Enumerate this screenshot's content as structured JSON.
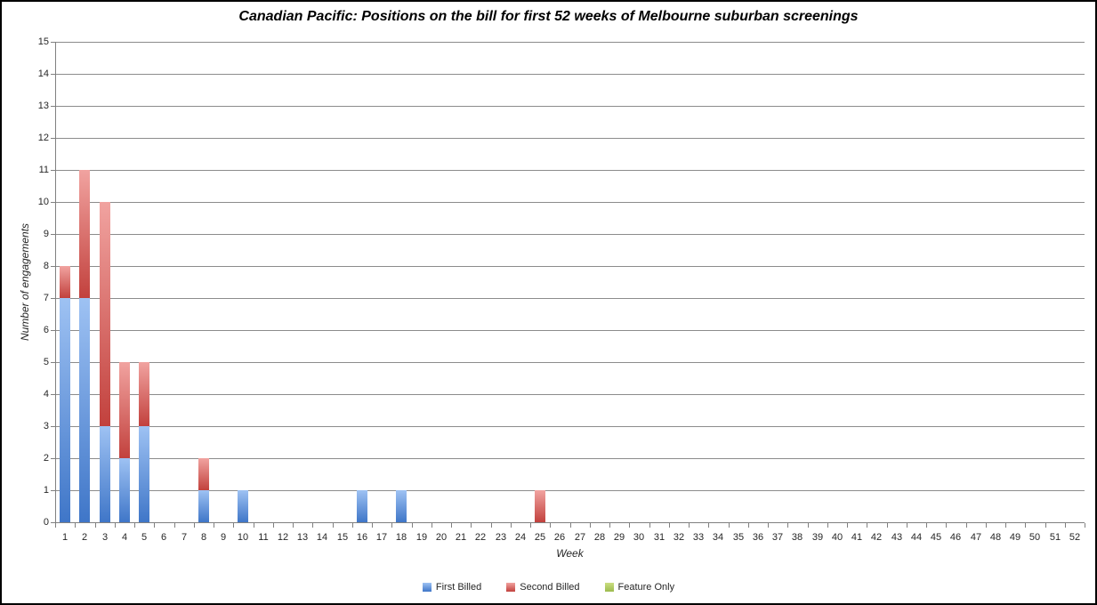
{
  "chart_data": {
    "type": "bar",
    "stacked": true,
    "title": "Canadian Pacific: Positions on the bill for first 52 weeks of Melbourne suburban screenings",
    "xlabel": "Week",
    "ylabel": "Number of engagements",
    "ylim": [
      0,
      15
    ],
    "ytick_step": 1,
    "grid": "horizontal",
    "legend_position": "bottom",
    "categories": [
      1,
      2,
      3,
      4,
      5,
      6,
      7,
      8,
      9,
      10,
      11,
      12,
      13,
      14,
      15,
      16,
      17,
      18,
      19,
      20,
      21,
      22,
      23,
      24,
      25,
      26,
      27,
      28,
      29,
      30,
      31,
      32,
      33,
      34,
      35,
      36,
      37,
      38,
      39,
      40,
      41,
      42,
      43,
      44,
      45,
      46,
      47,
      48,
      49,
      50,
      51,
      52
    ],
    "series": [
      {
        "name": "First Billed",
        "color": "#4F81BD",
        "color_light": "#9EC2F3",
        "color_dark": "#3F76C8",
        "values": [
          7,
          7,
          3,
          2,
          3,
          0,
          0,
          1,
          0,
          1,
          0,
          0,
          0,
          0,
          0,
          1,
          0,
          1,
          0,
          0,
          0,
          0,
          0,
          0,
          0,
          0,
          0,
          0,
          0,
          0,
          0,
          0,
          0,
          0,
          0,
          0,
          0,
          0,
          0,
          0,
          0,
          0,
          0,
          0,
          0,
          0,
          0,
          0,
          0,
          0,
          0,
          0
        ]
      },
      {
        "name": "Second Billed",
        "color": "#C0504D",
        "color_light": "#F1A3A0",
        "color_dark": "#C2413D",
        "values": [
          1,
          4,
          7,
          3,
          2,
          0,
          0,
          1,
          0,
          0,
          0,
          0,
          0,
          0,
          0,
          0,
          0,
          0,
          0,
          0,
          0,
          0,
          0,
          0,
          1,
          0,
          0,
          0,
          0,
          0,
          0,
          0,
          0,
          0,
          0,
          0,
          0,
          0,
          0,
          0,
          0,
          0,
          0,
          0,
          0,
          0,
          0,
          0,
          0,
          0,
          0,
          0
        ]
      },
      {
        "name": "Feature Only",
        "color": "#9BBB59",
        "color_light": "#CBDE82",
        "color_dark": "#9CBB4E",
        "values": [
          0,
          0,
          0,
          0,
          0,
          0,
          0,
          0,
          0,
          0,
          0,
          0,
          0,
          0,
          0,
          0,
          0,
          0,
          0,
          0,
          0,
          0,
          0,
          0,
          0,
          0,
          0,
          0,
          0,
          0,
          0,
          0,
          0,
          0,
          0,
          0,
          0,
          0,
          0,
          0,
          0,
          0,
          0,
          0,
          0,
          0,
          0,
          0,
          0,
          0,
          0,
          0
        ]
      }
    ]
  }
}
